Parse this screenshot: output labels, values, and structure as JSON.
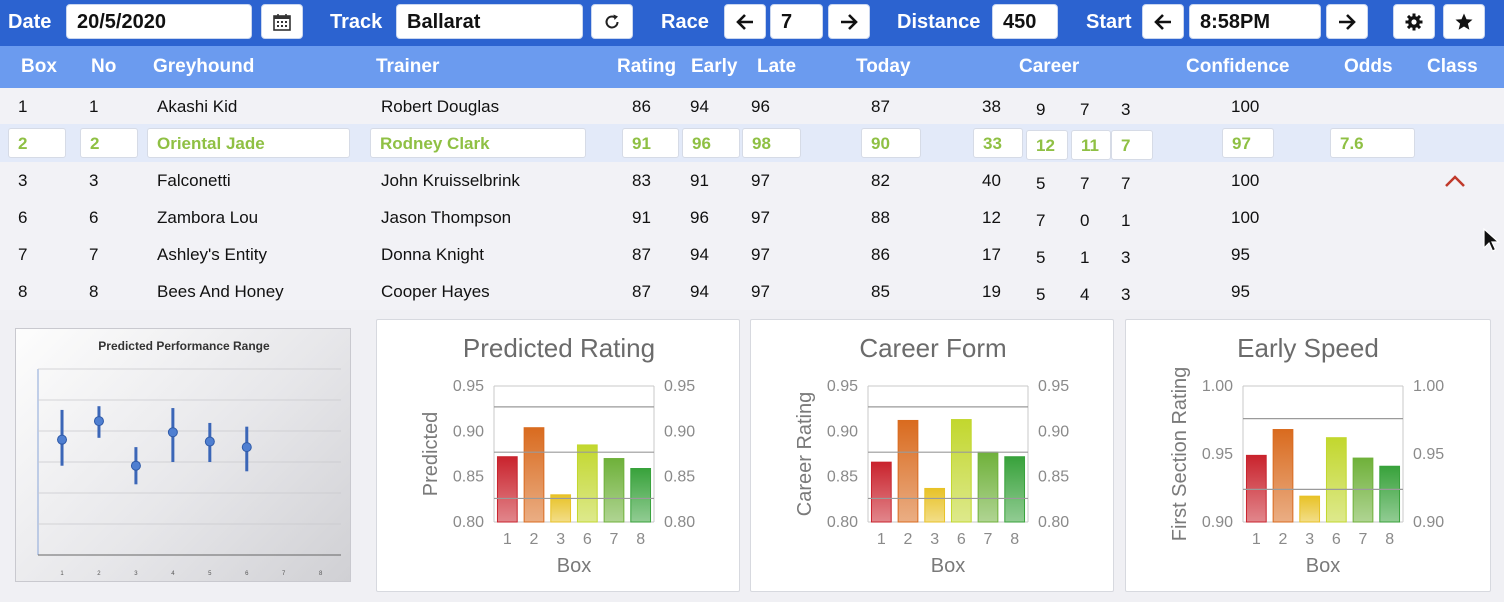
{
  "toolbar": {
    "date_label": "Date",
    "date_value": "20/5/2020",
    "calendar_icon": "calendar-icon",
    "track_label": "Track",
    "track_value": "Ballarat",
    "refresh_icon": "refresh-icon",
    "race_label": "Race",
    "race_value": "7",
    "distance_label": "Distance",
    "distance_value": "450",
    "start_label": "Start",
    "start_value": "8:58PM",
    "settings_icon": "gear-icon",
    "favorite_icon": "star-icon",
    "colors": {
      "bar": "#2c63d0",
      "header": "#6b9bef",
      "highlight": "#8fc044"
    }
  },
  "table": {
    "headers": [
      "Box",
      "No",
      "Greyhound",
      "Trainer",
      "Rating",
      "Early",
      "Late",
      "Today",
      "Career",
      "Confidence",
      "Odds",
      "Class"
    ],
    "rows": [
      {
        "box": "1",
        "no": "1",
        "greyhound": "Akashi Kid",
        "trainer": "Robert Douglas",
        "rating": "86",
        "early": "94",
        "late": "96",
        "today": "87",
        "career": [
          "38",
          "9",
          "7",
          "3"
        ],
        "confidence": "100",
        "odds": ""
      },
      {
        "box": "2",
        "no": "2",
        "greyhound": "Oriental Jade",
        "trainer": "Rodney Clark",
        "rating": "91",
        "early": "96",
        "late": "98",
        "today": "90",
        "career": [
          "33",
          "12",
          "11",
          "7"
        ],
        "confidence": "97",
        "odds": "7.6"
      },
      {
        "box": "3",
        "no": "3",
        "greyhound": "Falconetti",
        "trainer": "John Kruisselbrink",
        "rating": "83",
        "early": "91",
        "late": "97",
        "today": "82",
        "career": [
          "40",
          "5",
          "7",
          "7"
        ],
        "confidence": "100",
        "odds": ""
      },
      {
        "box": "6",
        "no": "6",
        "greyhound": "Zambora Lou",
        "trainer": "Jason Thompson",
        "rating": "91",
        "early": "96",
        "late": "97",
        "today": "88",
        "career": [
          "12",
          "7",
          "0",
          "1"
        ],
        "confidence": "100",
        "odds": ""
      },
      {
        "box": "7",
        "no": "7",
        "greyhound": "Ashley's Entity",
        "trainer": "Donna Knight",
        "rating": "87",
        "early": "94",
        "late": "97",
        "today": "86",
        "career": [
          "17",
          "5",
          "1",
          "3"
        ],
        "confidence": "95",
        "odds": ""
      },
      {
        "box": "8",
        "no": "8",
        "greyhound": "Bees And Honey",
        "trainer": "Cooper Hayes",
        "rating": "87",
        "early": "94",
        "late": "97",
        "today": "85",
        "career": [
          "19",
          "5",
          "4",
          "3"
        ],
        "confidence": "95",
        "odds": ""
      }
    ],
    "selected_row": 1,
    "sort_icon": "chevron-up-icon",
    "cursor_icon": "mouse-cursor-icon"
  },
  "chart_data": [
    {
      "type": "scatter",
      "title": "Predicted Performance Range",
      "categories": [
        "1",
        "2",
        "3",
        "4",
        "5",
        "6",
        "7",
        "8"
      ],
      "points": [
        {
          "x": "1",
          "mid": 0.62,
          "low": 0.48,
          "high": 0.78
        },
        {
          "x": "2",
          "mid": 0.72,
          "low": 0.63,
          "high": 0.8
        },
        {
          "x": "3",
          "mid": 0.48,
          "low": 0.38,
          "high": 0.58
        },
        {
          "x": "4",
          "mid": 0.66,
          "low": 0.5,
          "high": 0.79
        },
        {
          "x": "5",
          "mid": 0.61,
          "low": 0.5,
          "high": 0.71
        },
        {
          "x": "6",
          "mid": 0.58,
          "low": 0.45,
          "high": 0.69
        }
      ],
      "ylim": [
        0,
        1
      ],
      "grid": true
    },
    {
      "type": "bar",
      "title": "Predicted Rating",
      "xlabel": "Box",
      "ylabel": "Predicted",
      "categories": [
        "1",
        "2",
        "3",
        "6",
        "7",
        "8"
      ],
      "values": [
        0.872,
        0.904,
        0.83,
        0.885,
        0.87,
        0.859
      ],
      "colors": [
        "#c9232d",
        "#d96b1f",
        "#e8c227",
        "#c2d72e",
        "#6fb13a",
        "#38a23b"
      ],
      "ylim": [
        0.8,
        0.95
      ],
      "yticks": [
        "0.80",
        "0.85",
        "0.90",
        "0.95"
      ],
      "hlines": [
        0.826,
        0.877,
        0.927
      ]
    },
    {
      "type": "bar",
      "title": "Career Form",
      "xlabel": "Box",
      "ylabel": "Career Rating",
      "categories": [
        "1",
        "2",
        "3",
        "6",
        "7",
        "8"
      ],
      "values": [
        0.866,
        0.912,
        0.837,
        0.913,
        0.877,
        0.872
      ],
      "colors": [
        "#c9232d",
        "#d96b1f",
        "#e8c227",
        "#c2d72e",
        "#6fb13a",
        "#38a23b"
      ],
      "ylim": [
        0.8,
        0.95
      ],
      "yticks": [
        "0.80",
        "0.85",
        "0.90",
        "0.95"
      ],
      "hlines": [
        0.826,
        0.877,
        0.927
      ]
    },
    {
      "type": "bar",
      "title": "Early Speed",
      "xlabel": "Box",
      "ylabel": "First Section Rating",
      "categories": [
        "1",
        "2",
        "3",
        "6",
        "7",
        "8"
      ],
      "values": [
        0.949,
        0.968,
        0.919,
        0.962,
        0.947,
        0.941
      ],
      "colors": [
        "#c9232d",
        "#d96b1f",
        "#e8c227",
        "#c2d72e",
        "#6fb13a",
        "#38a23b"
      ],
      "ylim": [
        0.9,
        1.0
      ],
      "yticks": [
        "0.90",
        "0.95",
        "1.00"
      ],
      "hlines": [
        0.924,
        0.976
      ]
    }
  ]
}
